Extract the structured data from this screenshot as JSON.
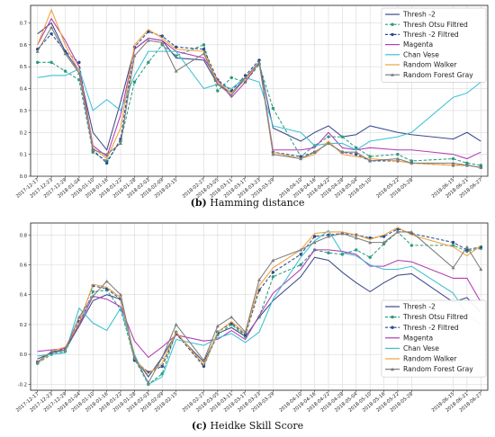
{
  "chart_data": [
    {
      "type": "line",
      "caption_letter": "(b)",
      "caption_text": "Hamming distance",
      "title": "",
      "xlabel": "",
      "ylabel": "",
      "ylim": [
        0.0,
        0.78
      ],
      "yticks": [
        0.0,
        0.1,
        0.2,
        0.3,
        0.4,
        0.5,
        0.6,
        0.7
      ],
      "ytick_labels": [
        "0.0",
        "0.1",
        "0.2",
        "0.3",
        "0.4",
        "0.5",
        "0.6",
        "0.7"
      ],
      "x_tick_labels": [
        "2017-12-17",
        "2017-12-23",
        "2017-12-29",
        "2018-01-04",
        "2018-01-10",
        "2018-01-16",
        "2018-01-22",
        "2018-01-28",
        "2018-02-03",
        "2018-02-09",
        "2018-02-15",
        "2018-02-27",
        "2018-03-05",
        "2018-03-11",
        "2018-03-17",
        "2018-03-23",
        "2018-03-29",
        "2018-04-10",
        "2018-04-16",
        "2018-04-22",
        "2018-04-28",
        "2018-05-04",
        "2018-05-10",
        "2018-05-22",
        "2018-05-28",
        "2018-06-15",
        "2018-06-21",
        "2018-06-27"
      ],
      "x": [
        "2017-12-17",
        "2017-12-23",
        "2017-12-29",
        "2018-01-04",
        "2018-01-10",
        "2018-01-16",
        "2018-01-22",
        "2018-01-28",
        "2018-02-03",
        "2018-02-09",
        "2018-02-15",
        "2018-02-27",
        "2018-03-05",
        "2018-03-11",
        "2018-03-17",
        "2018-03-23",
        "2018-03-29",
        "2018-04-10",
        "2018-04-16",
        "2018-04-22",
        "2018-04-28",
        "2018-05-04",
        "2018-05-10",
        "2018-05-22",
        "2018-05-28",
        "2018-06-15",
        "2018-06-21",
        "2018-06-27"
      ],
      "grid": true,
      "legend_position": "top-right",
      "series": [
        {
          "name": "Thresh -2",
          "color": "#3b4a8a",
          "style": "solid",
          "marker": "none",
          "values": [
            0.65,
            0.7,
            0.57,
            0.48,
            0.2,
            0.12,
            0.34,
            0.58,
            0.63,
            0.62,
            0.54,
            0.53,
            0.42,
            0.38,
            0.45,
            0.52,
            0.22,
            0.16,
            0.2,
            0.23,
            0.18,
            0.19,
            0.23,
            0.2,
            0.19,
            0.17,
            0.2,
            0.16
          ]
        },
        {
          "name": "Thresh Otsu Filtred",
          "color": "#2e9b7e",
          "style": "dashed",
          "marker": "circle",
          "values": [
            0.52,
            0.52,
            0.48,
            0.44,
            0.11,
            0.07,
            0.16,
            0.43,
            0.52,
            0.6,
            0.55,
            0.6,
            0.39,
            0.45,
            0.43,
            0.51,
            0.31,
            0.09,
            0.14,
            0.18,
            0.18,
            0.13,
            0.09,
            0.1,
            0.07,
            0.08,
            0.06,
            0.05
          ]
        },
        {
          "name": "Thresh -2 Filtred",
          "color": "#2a4d8c",
          "style": "dashed",
          "marker": "circle",
          "values": [
            0.58,
            0.65,
            0.57,
            0.52,
            0.12,
            0.06,
            0.17,
            0.59,
            0.66,
            0.64,
            0.59,
            0.58,
            0.44,
            0.39,
            0.46,
            0.53,
            0.11,
            0.09,
            0.11,
            0.15,
            0.11,
            0.1,
            0.07,
            0.07,
            0.06,
            0.05,
            0.05,
            0.04
          ]
        },
        {
          "name": "Magenta",
          "color": "#b33bb3",
          "style": "solid",
          "marker": "none",
          "values": [
            0.6,
            0.72,
            0.62,
            0.5,
            0.14,
            0.09,
            0.28,
            0.58,
            0.63,
            0.62,
            0.57,
            0.54,
            0.44,
            0.36,
            0.43,
            0.52,
            0.12,
            0.12,
            0.13,
            0.2,
            0.13,
            0.12,
            0.13,
            0.12,
            0.12,
            0.1,
            0.08,
            0.11
          ]
        },
        {
          "name": "Chan Vese",
          "color": "#3cc0d3",
          "style": "solid",
          "marker": "none",
          "values": [
            0.45,
            0.46,
            0.46,
            0.49,
            0.3,
            0.35,
            0.3,
            0.46,
            0.57,
            0.57,
            0.57,
            0.4,
            0.42,
            0.4,
            0.45,
            0.43,
            0.23,
            0.2,
            0.14,
            0.15,
            0.15,
            0.12,
            0.16,
            0.18,
            0.2,
            0.36,
            0.38,
            0.43
          ]
        },
        {
          "name": "Random Walker",
          "color": "#f0a13c",
          "style": "solid",
          "marker": "none",
          "values": [
            0.6,
            0.76,
            0.6,
            0.48,
            0.13,
            0.08,
            0.22,
            0.6,
            0.67,
            0.63,
            0.58,
            0.57,
            0.43,
            0.38,
            0.44,
            0.52,
            0.11,
            0.08,
            0.1,
            0.16,
            0.1,
            0.09,
            0.08,
            0.07,
            0.06,
            0.05,
            0.05,
            0.04
          ]
        },
        {
          "name": "Random Forest  Gray",
          "color": "#7d7d7d",
          "style": "solid",
          "marker": "triangle",
          "values": [
            0.57,
            0.68,
            0.56,
            0.47,
            0.12,
            0.1,
            0.15,
            0.55,
            0.62,
            0.61,
            0.48,
            0.56,
            0.42,
            0.37,
            0.45,
            0.52,
            0.1,
            0.08,
            0.11,
            0.15,
            0.11,
            0.11,
            0.07,
            0.08,
            0.06,
            0.06,
            0.05,
            0.04
          ]
        }
      ]
    },
    {
      "type": "line",
      "caption_letter": "(c)",
      "caption_text": "Heidke Skill Score",
      "title": "",
      "xlabel": "",
      "ylabel": "",
      "ylim": [
        -0.24,
        0.88
      ],
      "yticks": [
        -0.2,
        0.0,
        0.2,
        0.4,
        0.6,
        0.8
      ],
      "ytick_labels": [
        "-0.2",
        "0.0",
        "0.2",
        "0.4",
        "0.6",
        "0.8"
      ],
      "x_tick_labels": [
        "2017-12-17",
        "2017-12-23",
        "2017-12-29",
        "2018-01-04",
        "2018-01-10",
        "2018-01-16",
        "2018-01-22",
        "2018-01-28",
        "2018-02-03",
        "2018-02-09",
        "2018-02-15",
        "2018-02-27",
        "2018-03-05",
        "2018-03-11",
        "2018-03-17",
        "2018-03-23",
        "2018-03-29",
        "2018-04-10",
        "2018-04-16",
        "2018-04-22",
        "2018-04-28",
        "2018-05-04",
        "2018-05-10",
        "2018-05-16",
        "2018-05-22",
        "2018-05-28",
        "2018-06-15",
        "2018-06-21",
        "2018-06-27"
      ],
      "x": [
        "2017-12-17",
        "2017-12-23",
        "2017-12-29",
        "2018-01-04",
        "2018-01-10",
        "2018-01-16",
        "2018-01-22",
        "2018-01-28",
        "2018-02-03",
        "2018-02-09",
        "2018-02-15",
        "2018-02-27",
        "2018-03-05",
        "2018-03-11",
        "2018-03-17",
        "2018-03-23",
        "2018-03-29",
        "2018-04-10",
        "2018-04-16",
        "2018-04-22",
        "2018-04-28",
        "2018-05-04",
        "2018-05-10",
        "2018-05-16",
        "2018-05-22",
        "2018-05-28",
        "2018-06-15",
        "2018-06-21",
        "2018-06-27"
      ],
      "grid": true,
      "legend_position": "bottom-right",
      "series": [
        {
          "name": "Thresh -2",
          "color": "#3b4a8a",
          "style": "solid",
          "marker": "none",
          "values": [
            -0.03,
            0.01,
            0.03,
            0.19,
            0.36,
            0.4,
            0.37,
            -0.02,
            -0.15,
            -0.02,
            0.14,
            -0.05,
            0.14,
            0.18,
            0.12,
            0.25,
            0.36,
            0.52,
            0.65,
            0.63,
            0.55,
            0.48,
            0.42,
            0.48,
            0.53,
            0.54,
            0.35,
            0.38,
            0.28
          ]
        },
        {
          "name": "Thresh Otsu Filtred",
          "color": "#2e9b7e",
          "style": "dashed",
          "marker": "circle",
          "values": [
            -0.06,
            0.0,
            0.02,
            0.2,
            0.42,
            0.43,
            0.3,
            -0.03,
            -0.2,
            -0.13,
            0.15,
            -0.07,
            0.13,
            0.2,
            0.12,
            0.25,
            0.52,
            0.6,
            0.7,
            0.68,
            0.67,
            0.7,
            0.65,
            0.74,
            0.82,
            0.73,
            0.73,
            0.69,
            0.71
          ]
        },
        {
          "name": "Thresh -2 Filtred",
          "color": "#2a4d8c",
          "style": "dashed",
          "marker": "circle",
          "values": [
            -0.05,
            0.01,
            0.04,
            0.22,
            0.46,
            0.44,
            0.37,
            -0.04,
            -0.12,
            -0.08,
            0.14,
            -0.08,
            0.15,
            0.21,
            0.13,
            0.43,
            0.55,
            0.67,
            0.79,
            0.8,
            0.81,
            0.8,
            0.78,
            0.79,
            0.84,
            0.81,
            0.75,
            0.7,
            0.72
          ]
        },
        {
          "name": "Magenta",
          "color": "#b33bb3",
          "style": "solid",
          "marker": "none",
          "values": [
            0.02,
            0.03,
            0.04,
            0.2,
            0.39,
            0.37,
            0.32,
            0.09,
            -0.02,
            0.05,
            0.13,
            0.09,
            0.1,
            0.16,
            0.1,
            0.26,
            0.41,
            0.57,
            0.7,
            0.7,
            0.69,
            0.67,
            0.59,
            0.59,
            0.63,
            0.62,
            0.51,
            0.51,
            0.35
          ]
        },
        {
          "name": "Chan Vese",
          "color": "#3cc0d3",
          "style": "solid",
          "marker": "none",
          "values": [
            -0.01,
            0.0,
            0.01,
            0.31,
            0.21,
            0.16,
            0.31,
            0.0,
            -0.2,
            -0.15,
            0.1,
            0.06,
            0.11,
            0.14,
            0.08,
            0.15,
            0.37,
            0.65,
            0.76,
            0.83,
            0.68,
            0.66,
            0.6,
            0.57,
            0.57,
            0.59,
            0.41,
            0.27,
            0.2
          ]
        },
        {
          "name": "Random Walker",
          "color": "#f0a13c",
          "style": "solid",
          "marker": "none",
          "values": [
            -0.06,
            0.02,
            0.05,
            0.21,
            0.47,
            0.45,
            0.38,
            -0.03,
            -0.13,
            -0.06,
            0.15,
            -0.07,
            0.15,
            0.22,
            0.14,
            0.46,
            0.58,
            0.7,
            0.81,
            0.82,
            0.82,
            0.8,
            0.77,
            0.8,
            0.85,
            0.8,
            0.72,
            0.66,
            0.73
          ]
        },
        {
          "name": "Random Forest  Gray",
          "color": "#7d7d7d",
          "style": "solid",
          "marker": "triangle",
          "values": [
            -0.05,
            0.02,
            0.03,
            0.25,
            0.39,
            0.49,
            0.4,
            -0.02,
            -0.19,
            -0.02,
            0.2,
            -0.04,
            0.19,
            0.25,
            0.15,
            0.5,
            0.63,
            0.7,
            0.75,
            0.79,
            0.81,
            0.78,
            0.75,
            0.75,
            0.82,
            0.82,
            0.58,
            0.72,
            0.57
          ]
        }
      ]
    }
  ]
}
